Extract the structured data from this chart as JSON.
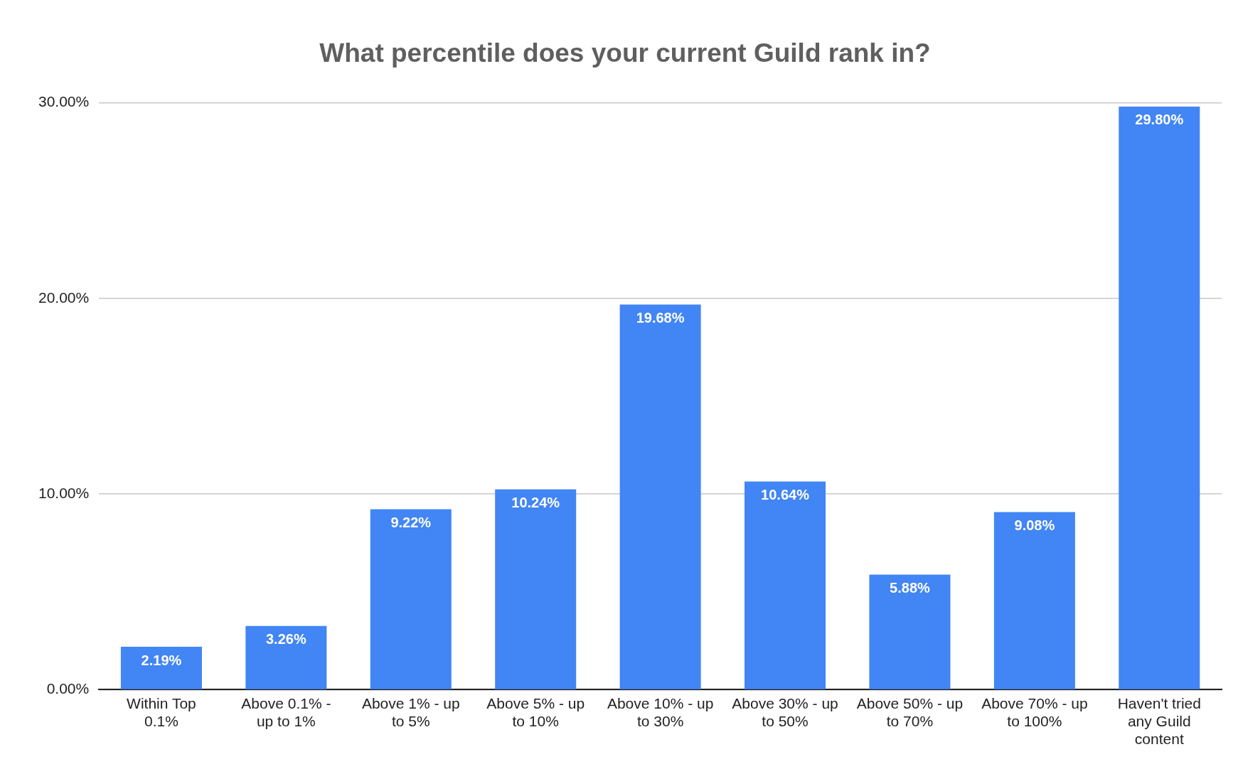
{
  "chart_data": {
    "type": "bar",
    "title": "What percentile does your current Guild rank in?",
    "categories": [
      "Within Top 0.1%",
      "Above 0.1% - up to 1%",
      "Above 1% - up to 5%",
      "Above 5% - up to 10%",
      "Above 10% - up to 30%",
      "Above 30% - up to 50%",
      "Above 50% - up to 70%",
      "Above 70% - up to 100%",
      "Haven't tried any Guild content"
    ],
    "values": [
      2.19,
      3.26,
      9.22,
      10.24,
      19.68,
      10.64,
      5.88,
      9.08,
      29.8
    ],
    "value_labels": [
      "2.19%",
      "3.26%",
      "9.22%",
      "10.24%",
      "19.68%",
      "10.64%",
      "5.88%",
      "9.08%",
      "29.80%"
    ],
    "color": "#4285f4",
    "ylim": [
      0,
      30
    ],
    "yticks": [
      {
        "value": 0,
        "label": "0.00%"
      },
      {
        "value": 10,
        "label": "10.00%"
      },
      {
        "value": 20,
        "label": "20.00%"
      },
      {
        "value": 30,
        "label": "30.00%"
      }
    ],
    "grid": "y",
    "legend": false
  }
}
